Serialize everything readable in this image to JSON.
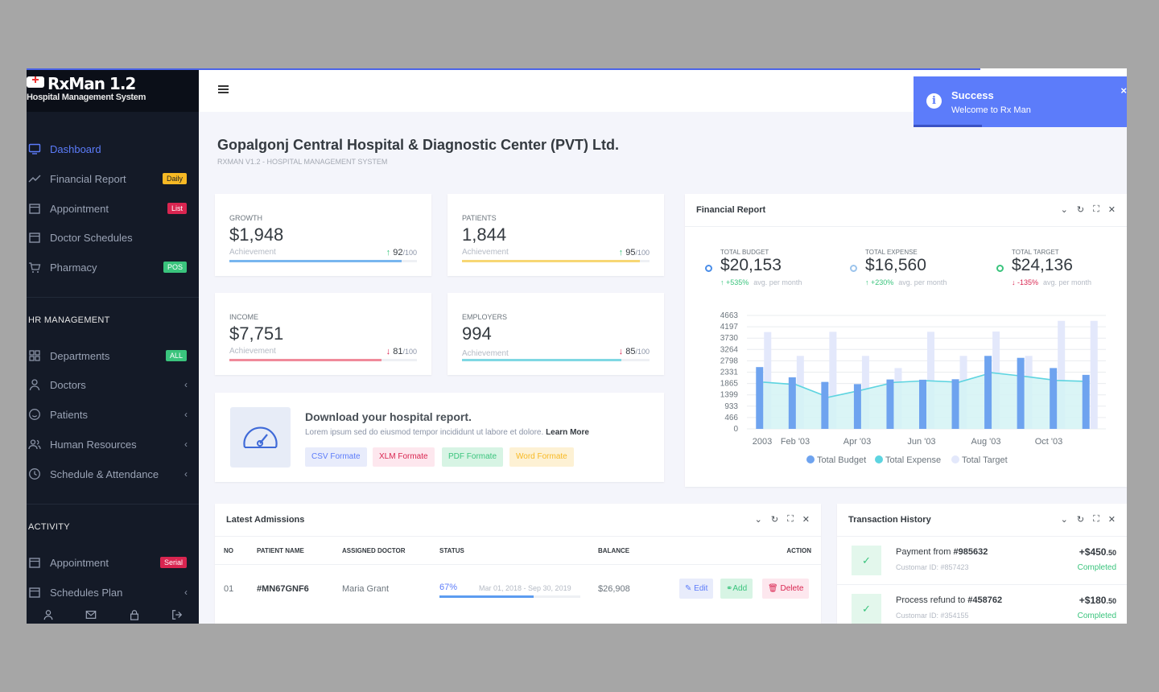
{
  "app": {
    "logo_title": "RxMan 1.2",
    "logo_subtitle": "Hospital Management System"
  },
  "toast": {
    "title": "Success",
    "message": "Welcome to Rx Man",
    "close": "×"
  },
  "sidebar": {
    "main_items": [
      {
        "label": "Dashboard",
        "icon": "monitor-icon"
      },
      {
        "label": "Financial Report",
        "icon": "trend-icon",
        "badge": "Daily"
      },
      {
        "label": "Appointment",
        "icon": "calendar-icon",
        "badge": "List"
      },
      {
        "label": "Doctor Schedules",
        "icon": "calendar-icon"
      },
      {
        "label": "Pharmacy",
        "icon": "cart-icon",
        "badge": "POS"
      }
    ],
    "hr_section": "HR MANAGEMENT",
    "hr_items": [
      {
        "label": "Departments",
        "icon": "grid-icon",
        "badge": "ALL"
      },
      {
        "label": "Doctors",
        "icon": "user-icon"
      },
      {
        "label": "Patients",
        "icon": "smile-icon"
      },
      {
        "label": "Human Resources",
        "icon": "users-icon"
      },
      {
        "label": "Schedule & Attendance",
        "icon": "clock-icon"
      }
    ],
    "activity_section": "ACTIVITY",
    "activity_items": [
      {
        "label": "Appointment",
        "icon": "calendar-icon",
        "badge": "Serial"
      },
      {
        "label": "Schedules Plan",
        "icon": "calendar-icon"
      }
    ],
    "chevron": "‹"
  },
  "page": {
    "title": "Gopalgonj Central Hospital & Diagnostic Center (PVT) Ltd.",
    "subtitle": "RXMAN V1.2 - HOSPITAL MANAGEMENT SYSTEM"
  },
  "stats": [
    {
      "label": "GROWTH",
      "value": "$1,948",
      "sub": "Achievement",
      "arrow": "↑",
      "score": "92",
      "max": "/100",
      "progress": 0.92,
      "color": "#78b6ef"
    },
    {
      "label": "PATIENTS",
      "value": "1,844",
      "sub": "Achievement",
      "arrow": "↑",
      "score": "95",
      "max": "/100",
      "progress": 0.95,
      "color": "#f7d774"
    },
    {
      "label": "INCOME",
      "value": "$7,751",
      "sub": "Achievement",
      "arrow": "↓",
      "score": "81",
      "max": "/100",
      "progress": 0.81,
      "color": "#f08a9a"
    },
    {
      "label": "EMPLOYERS",
      "value": "994",
      "sub": "Achievement",
      "arrow": "↓",
      "score": "85",
      "max": "/100",
      "progress": 0.85,
      "color": "#7fd8e3"
    }
  ],
  "download": {
    "title": "Download your hospital report.",
    "text": "Lorem ipsum sed do eiusmod tempor incididunt ut labore et dolore.",
    "link": "Learn More",
    "buttons": [
      "CSV Formate",
      "XLM Formate",
      "PDF Formate",
      "Word Formate"
    ]
  },
  "financial": {
    "title": "Financial Report",
    "metrics": [
      {
        "label": "TOTAL BUDGET",
        "value": "$20,153",
        "arrow": "↑",
        "change": "+535%",
        "note": "avg. per month",
        "color": "#4a8de8"
      },
      {
        "label": "TOTAL EXPENSE",
        "value": "$16,560",
        "arrow": "↑",
        "change": "+230%",
        "note": "avg. per month",
        "color": "#9cc4ec"
      },
      {
        "label": "TOTAL TARGET",
        "value": "$24,136",
        "arrow": "↓",
        "change": "-135%",
        "note": "avg. per month",
        "color": "#3ac47d"
      }
    ]
  },
  "chart_data": {
    "type": "bar",
    "x_tick_labels": [
      "2003",
      "Feb '03",
      "Apr '03",
      "Jun '03",
      "Aug '03",
      "Oct '03"
    ],
    "yticks": [
      0,
      466,
      933,
      1399,
      1865,
      2331,
      2798,
      3264,
      3730,
      4197,
      4663
    ],
    "ylim": [
      0,
      4663
    ],
    "series": [
      {
        "name": "Total Budget",
        "type": "bar",
        "color": "#6ea3ef",
        "values": [
          2540,
          2120,
          1930,
          1840,
          2030,
          2020,
          2040,
          3000,
          2920,
          2500,
          2220
        ]
      },
      {
        "name": "Total Expense",
        "type": "area",
        "color": "#5dd4e0",
        "values": [
          1920,
          1820,
          1300,
          1590,
          1910,
          1980,
          1920,
          2310,
          2160,
          1990,
          1950
        ]
      },
      {
        "name": "Total Target",
        "type": "bar",
        "color": "#e3e8fb",
        "values": [
          3980,
          3000,
          3990,
          3000,
          2500,
          3990,
          3000,
          4000,
          3000,
          4440,
          4440
        ]
      }
    ],
    "grid": true,
    "legend": "bottom"
  },
  "admissions": {
    "title": "Latest Admissions",
    "columns": [
      "NO",
      "PATIENT NAME",
      "ASSIGNED DOCTOR",
      "STATUS",
      "BALANCE",
      "ACTION"
    ],
    "rows": [
      {
        "no": "01",
        "patient": "#MN67GNF6",
        "doctor": "Maria Grant",
        "status": "67%",
        "status_value": 0.67,
        "range": "Mar 01, 2018 - Sep 30, 2019",
        "balance": "$26,908",
        "actions": [
          "Edit",
          "Add",
          "Delete"
        ]
      }
    ]
  },
  "transactions": {
    "title": "Transaction History",
    "items": [
      {
        "title": "Payment from ",
        "ref": "#985632",
        "sub": "Customar ID: #857423",
        "amount": "+$450",
        "cents": ".50",
        "status": "Completed"
      },
      {
        "title": "Process refund to ",
        "ref": "#458762",
        "sub": "Customar ID: #354155",
        "amount": "+$180",
        "cents": ".50",
        "status": "Completed"
      }
    ]
  },
  "tools": {
    "collapse": "⌄",
    "refresh": "↻",
    "expand": "⛶",
    "close": "✕"
  }
}
